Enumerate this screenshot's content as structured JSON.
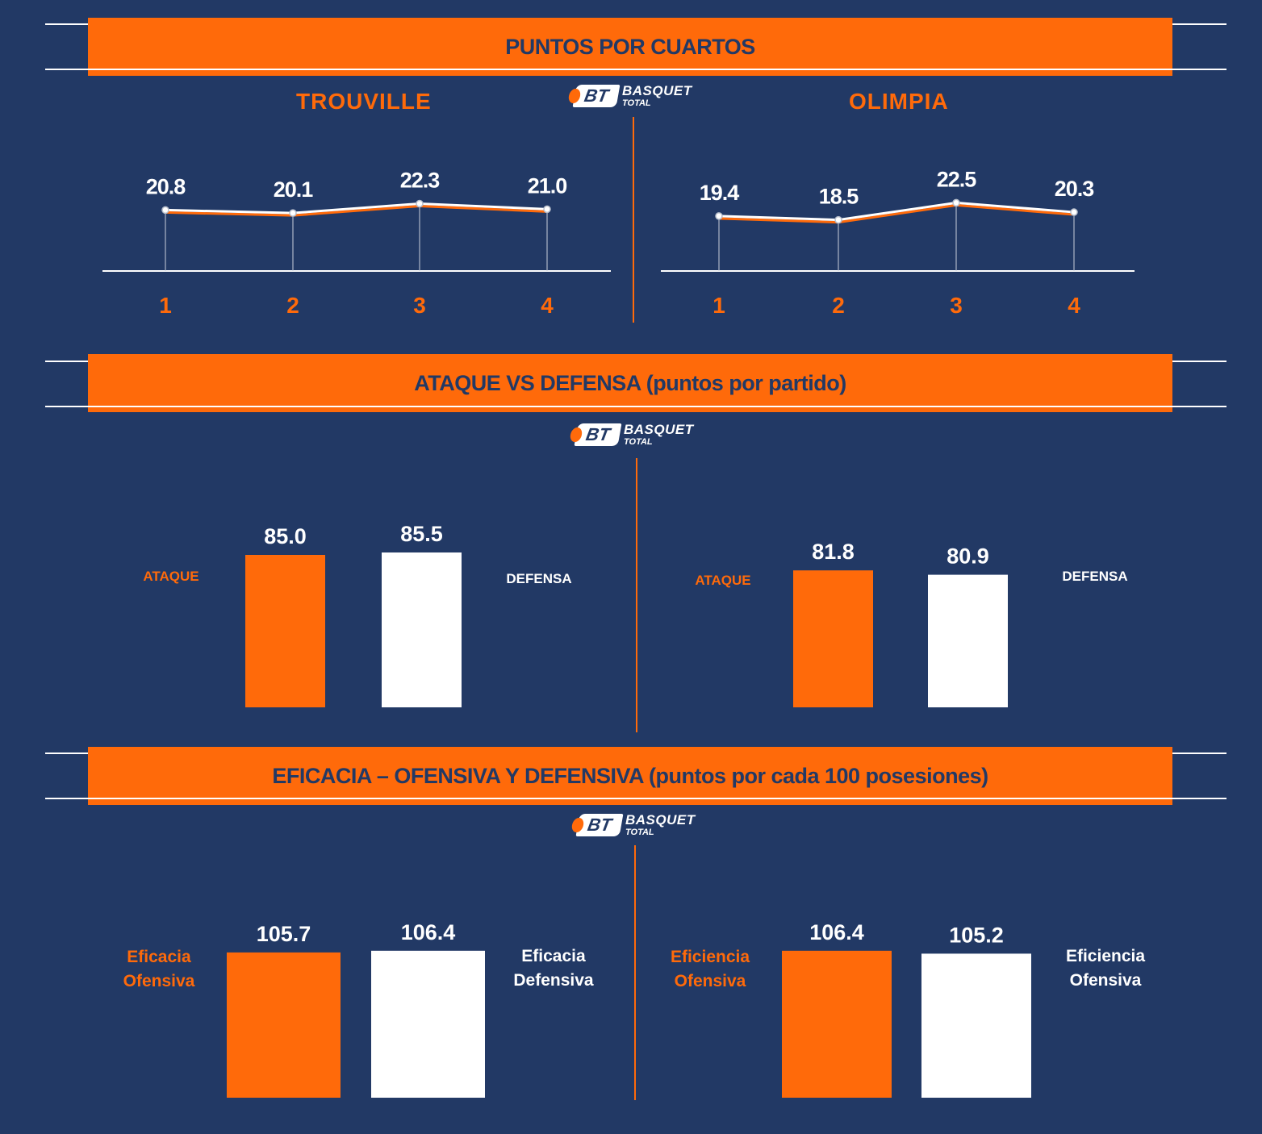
{
  "sections": {
    "s1": {
      "title": "PUNTOS POR CUARTOS"
    },
    "s2": {
      "title": "ATAQUE VS DEFENSA (puntos por partido)"
    },
    "s3": {
      "title": "EFICACIA – OFENSIVA Y DEFENSIVA (puntos por cada 100 posesiones)"
    }
  },
  "logo": {
    "initials": "BT",
    "word1": "BASQUET",
    "word2": "TOTAL"
  },
  "teams": {
    "left": "TROUVILLE",
    "right": "OLIMPIA"
  },
  "colors": {
    "background": "#223965",
    "accent": "#ff6a0a",
    "white": "#ffffff"
  },
  "labels": {
    "s2_left_a": "ATAQUE",
    "s2_left_b": "DEFENSA",
    "s2_right_a": "ATAQUE",
    "s2_right_b": "DEFENSA",
    "s3_left_a1": "Eficacia",
    "s3_left_a2": "Ofensiva",
    "s3_left_b1": "Eficacia",
    "s3_left_b2": "Defensiva",
    "s3_right_a1": "Eficiencia",
    "s3_right_a2": "Ofensiva",
    "s3_right_b1": "Eficiencia",
    "s3_right_b2": "Ofensiva"
  },
  "chart_data": [
    {
      "type": "line",
      "title": "PUNTOS POR CUARTOS",
      "team": "TROUVILLE",
      "categories": [
        "1",
        "2",
        "3",
        "4"
      ],
      "values": [
        20.8,
        20.1,
        22.3,
        21.0
      ]
    },
    {
      "type": "line",
      "title": "PUNTOS POR CUARTOS",
      "team": "OLIMPIA",
      "categories": [
        "1",
        "2",
        "3",
        "4"
      ],
      "values": [
        19.4,
        18.5,
        22.5,
        20.3
      ]
    },
    {
      "type": "bar",
      "title": "ATAQUE VS DEFENSA (puntos por partido)",
      "team": "TROUVILLE",
      "categories": [
        "ATAQUE",
        "DEFENSA"
      ],
      "values": [
        85.0,
        85.5
      ]
    },
    {
      "type": "bar",
      "title": "ATAQUE VS DEFENSA (puntos por partido)",
      "team": "OLIMPIA",
      "categories": [
        "ATAQUE",
        "DEFENSA"
      ],
      "values": [
        81.8,
        80.9
      ]
    },
    {
      "type": "bar",
      "title": "EFICACIA – OFENSIVA Y DEFENSIVA (puntos por cada 100 posesiones)",
      "team": "TROUVILLE",
      "categories": [
        "Eficacia Ofensiva",
        "Eficacia Defensiva"
      ],
      "values": [
        105.7,
        106.4
      ]
    },
    {
      "type": "bar",
      "title": "EFICACIA – OFENSIVA Y DEFENSIVA (puntos por cada 100 posesiones)",
      "team": "OLIMPIA",
      "categories": [
        "Eficiencia Ofensiva",
        "Eficiencia Ofensiva"
      ],
      "values": [
        106.4,
        105.2
      ]
    }
  ]
}
